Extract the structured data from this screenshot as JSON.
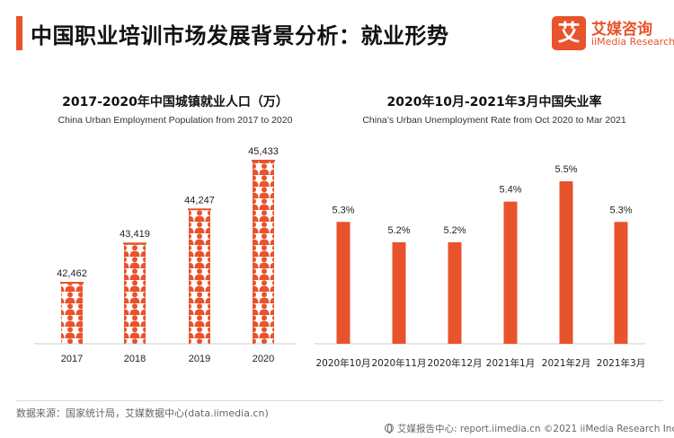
{
  "header": {
    "title": "中国职业培训市场发展背景分析：就业形势",
    "logo_mark": "艾",
    "logo_cn": "艾媒咨询",
    "logo_en": "iiMedia Research"
  },
  "colors": {
    "accent": "#e8532b",
    "axis": "#cccccc"
  },
  "chart_data": [
    {
      "type": "bar",
      "title": "2017-2020年中国城镇就业人口（万）",
      "subtitle": "China Urban Employment Population from 2017 to 2020",
      "categories": [
        "2017",
        "2018",
        "2019",
        "2020"
      ],
      "values": [
        42462,
        43419,
        44247,
        45433
      ],
      "value_labels": [
        "42,462",
        "43,419",
        "44,247",
        "45,433"
      ],
      "ylim": [
        41000,
        45433
      ],
      "bar_style": "pictograph-people",
      "grid": false
    },
    {
      "type": "bar",
      "title": "2020年10月-2021年3月中国失业率",
      "subtitle": "China’s Urban Unemployment Rate from Oct 2020 to Mar 2021",
      "categories": [
        "2020年10月",
        "2020年11月",
        "2020年12月",
        "2021年1月",
        "2021年2月",
        "2021年3月"
      ],
      "values": [
        5.3,
        5.2,
        5.2,
        5.4,
        5.5,
        5.3
      ],
      "value_labels": [
        "5.3%",
        "5.2%",
        "5.2%",
        "5.4%",
        "5.5%",
        "5.3%"
      ],
      "ylim": [
        4.7,
        5.5
      ],
      "grid": false
    }
  ],
  "footer": {
    "source": "数据来源：国家统计局，艾媒数据中心(data.iimedia.cn)",
    "credit": "艾媒报告中心: report.iimedia.cn  ©2021  iiMedia Research  Inc"
  }
}
